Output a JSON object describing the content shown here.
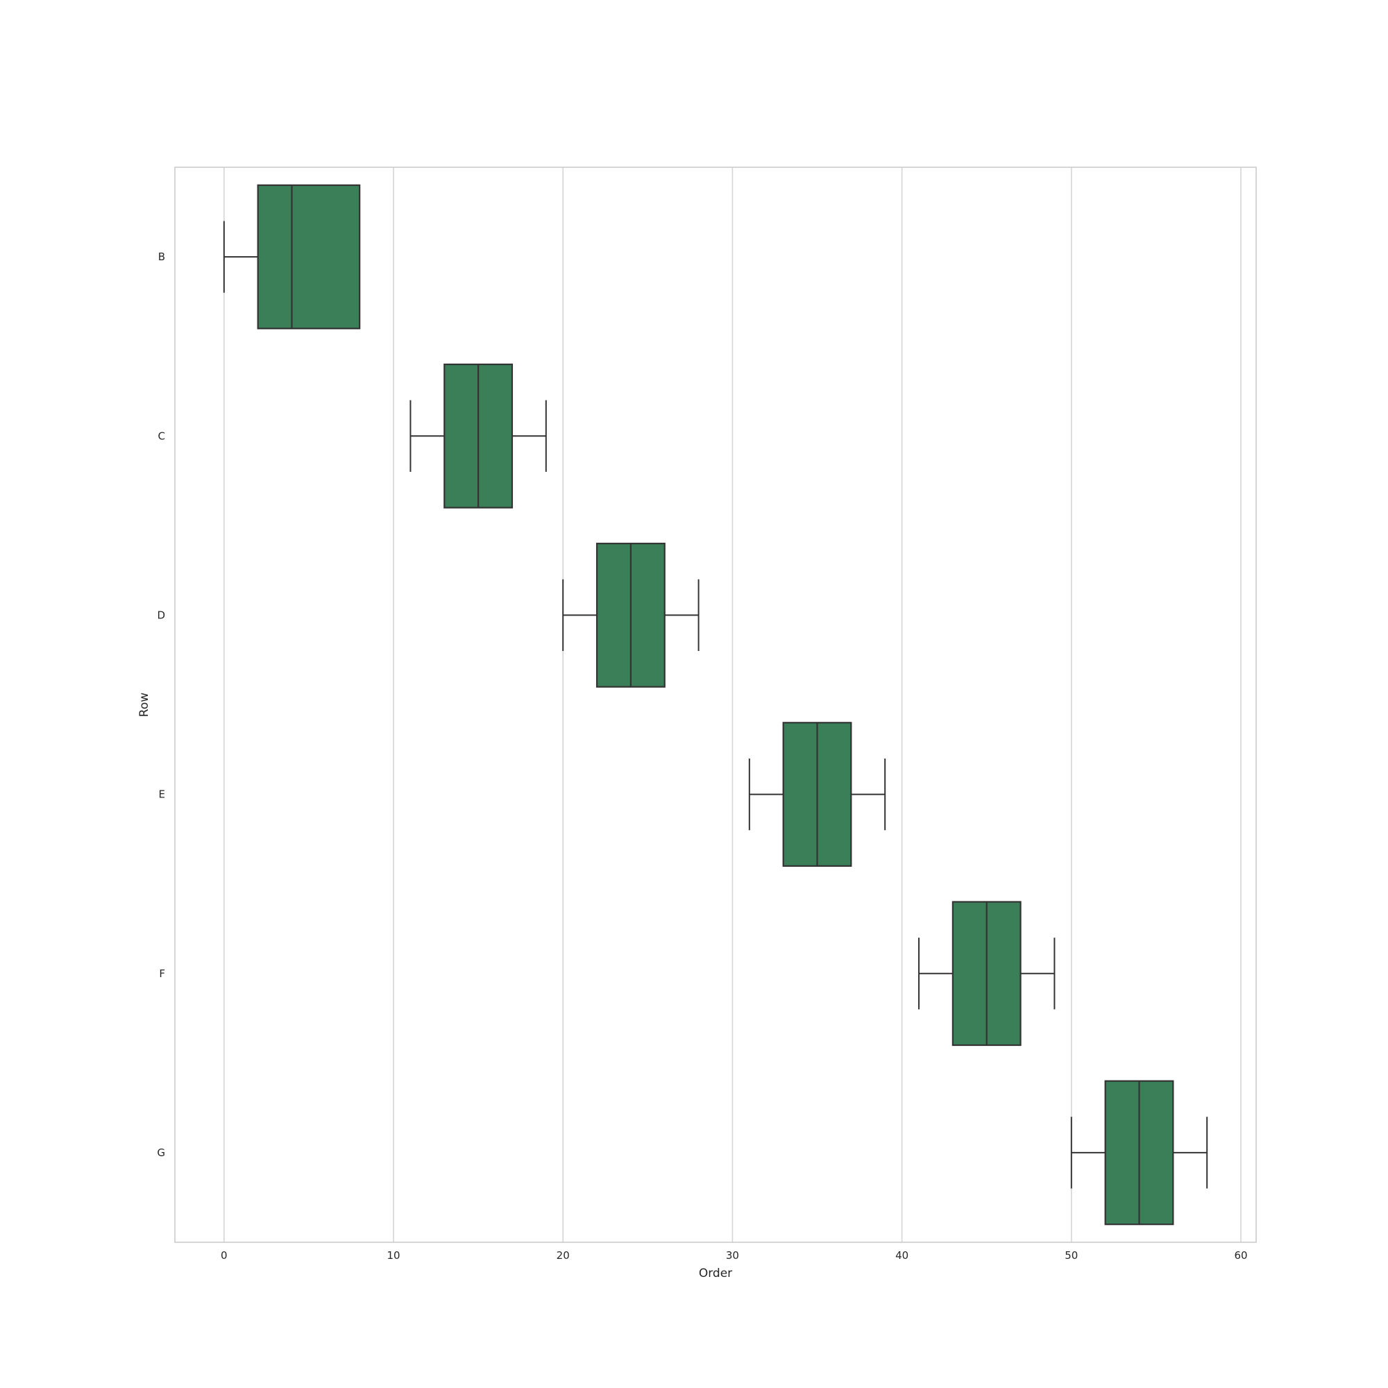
{
  "chart_data": {
    "type": "boxplot",
    "orientation": "horizontal",
    "xlabel": "Order",
    "ylabel": "Row",
    "xlim": [
      -2.9,
      60.9
    ],
    "xticks": [
      0,
      10,
      20,
      30,
      40,
      50,
      60
    ],
    "grid": "vertical",
    "categories": [
      "B",
      "C",
      "D",
      "E",
      "F",
      "G"
    ],
    "boxes": [
      {
        "category": "B",
        "whisker_low": 0,
        "q1": 2,
        "median": 4,
        "q3": 8,
        "whisker_high": 8
      },
      {
        "category": "C",
        "whisker_low": 11,
        "q1": 13,
        "median": 15,
        "q3": 17,
        "whisker_high": 19
      },
      {
        "category": "D",
        "whisker_low": 20,
        "q1": 22,
        "median": 24,
        "q3": 26,
        "whisker_high": 28
      },
      {
        "category": "E",
        "whisker_low": 31,
        "q1": 33,
        "median": 35,
        "q3": 37,
        "whisker_high": 39
      },
      {
        "category": "F",
        "whisker_low": 41,
        "q1": 43,
        "median": 45,
        "q3": 47,
        "whisker_high": 49
      },
      {
        "category": "G",
        "whisker_low": 50,
        "q1": 52,
        "median": 54,
        "q3": 56,
        "whisker_high": 58
      }
    ],
    "colors": {
      "box_fill": "#3a7f57",
      "box_edge": "#333333",
      "grid": "#d5d5d5",
      "frame": "#cccccc"
    }
  }
}
